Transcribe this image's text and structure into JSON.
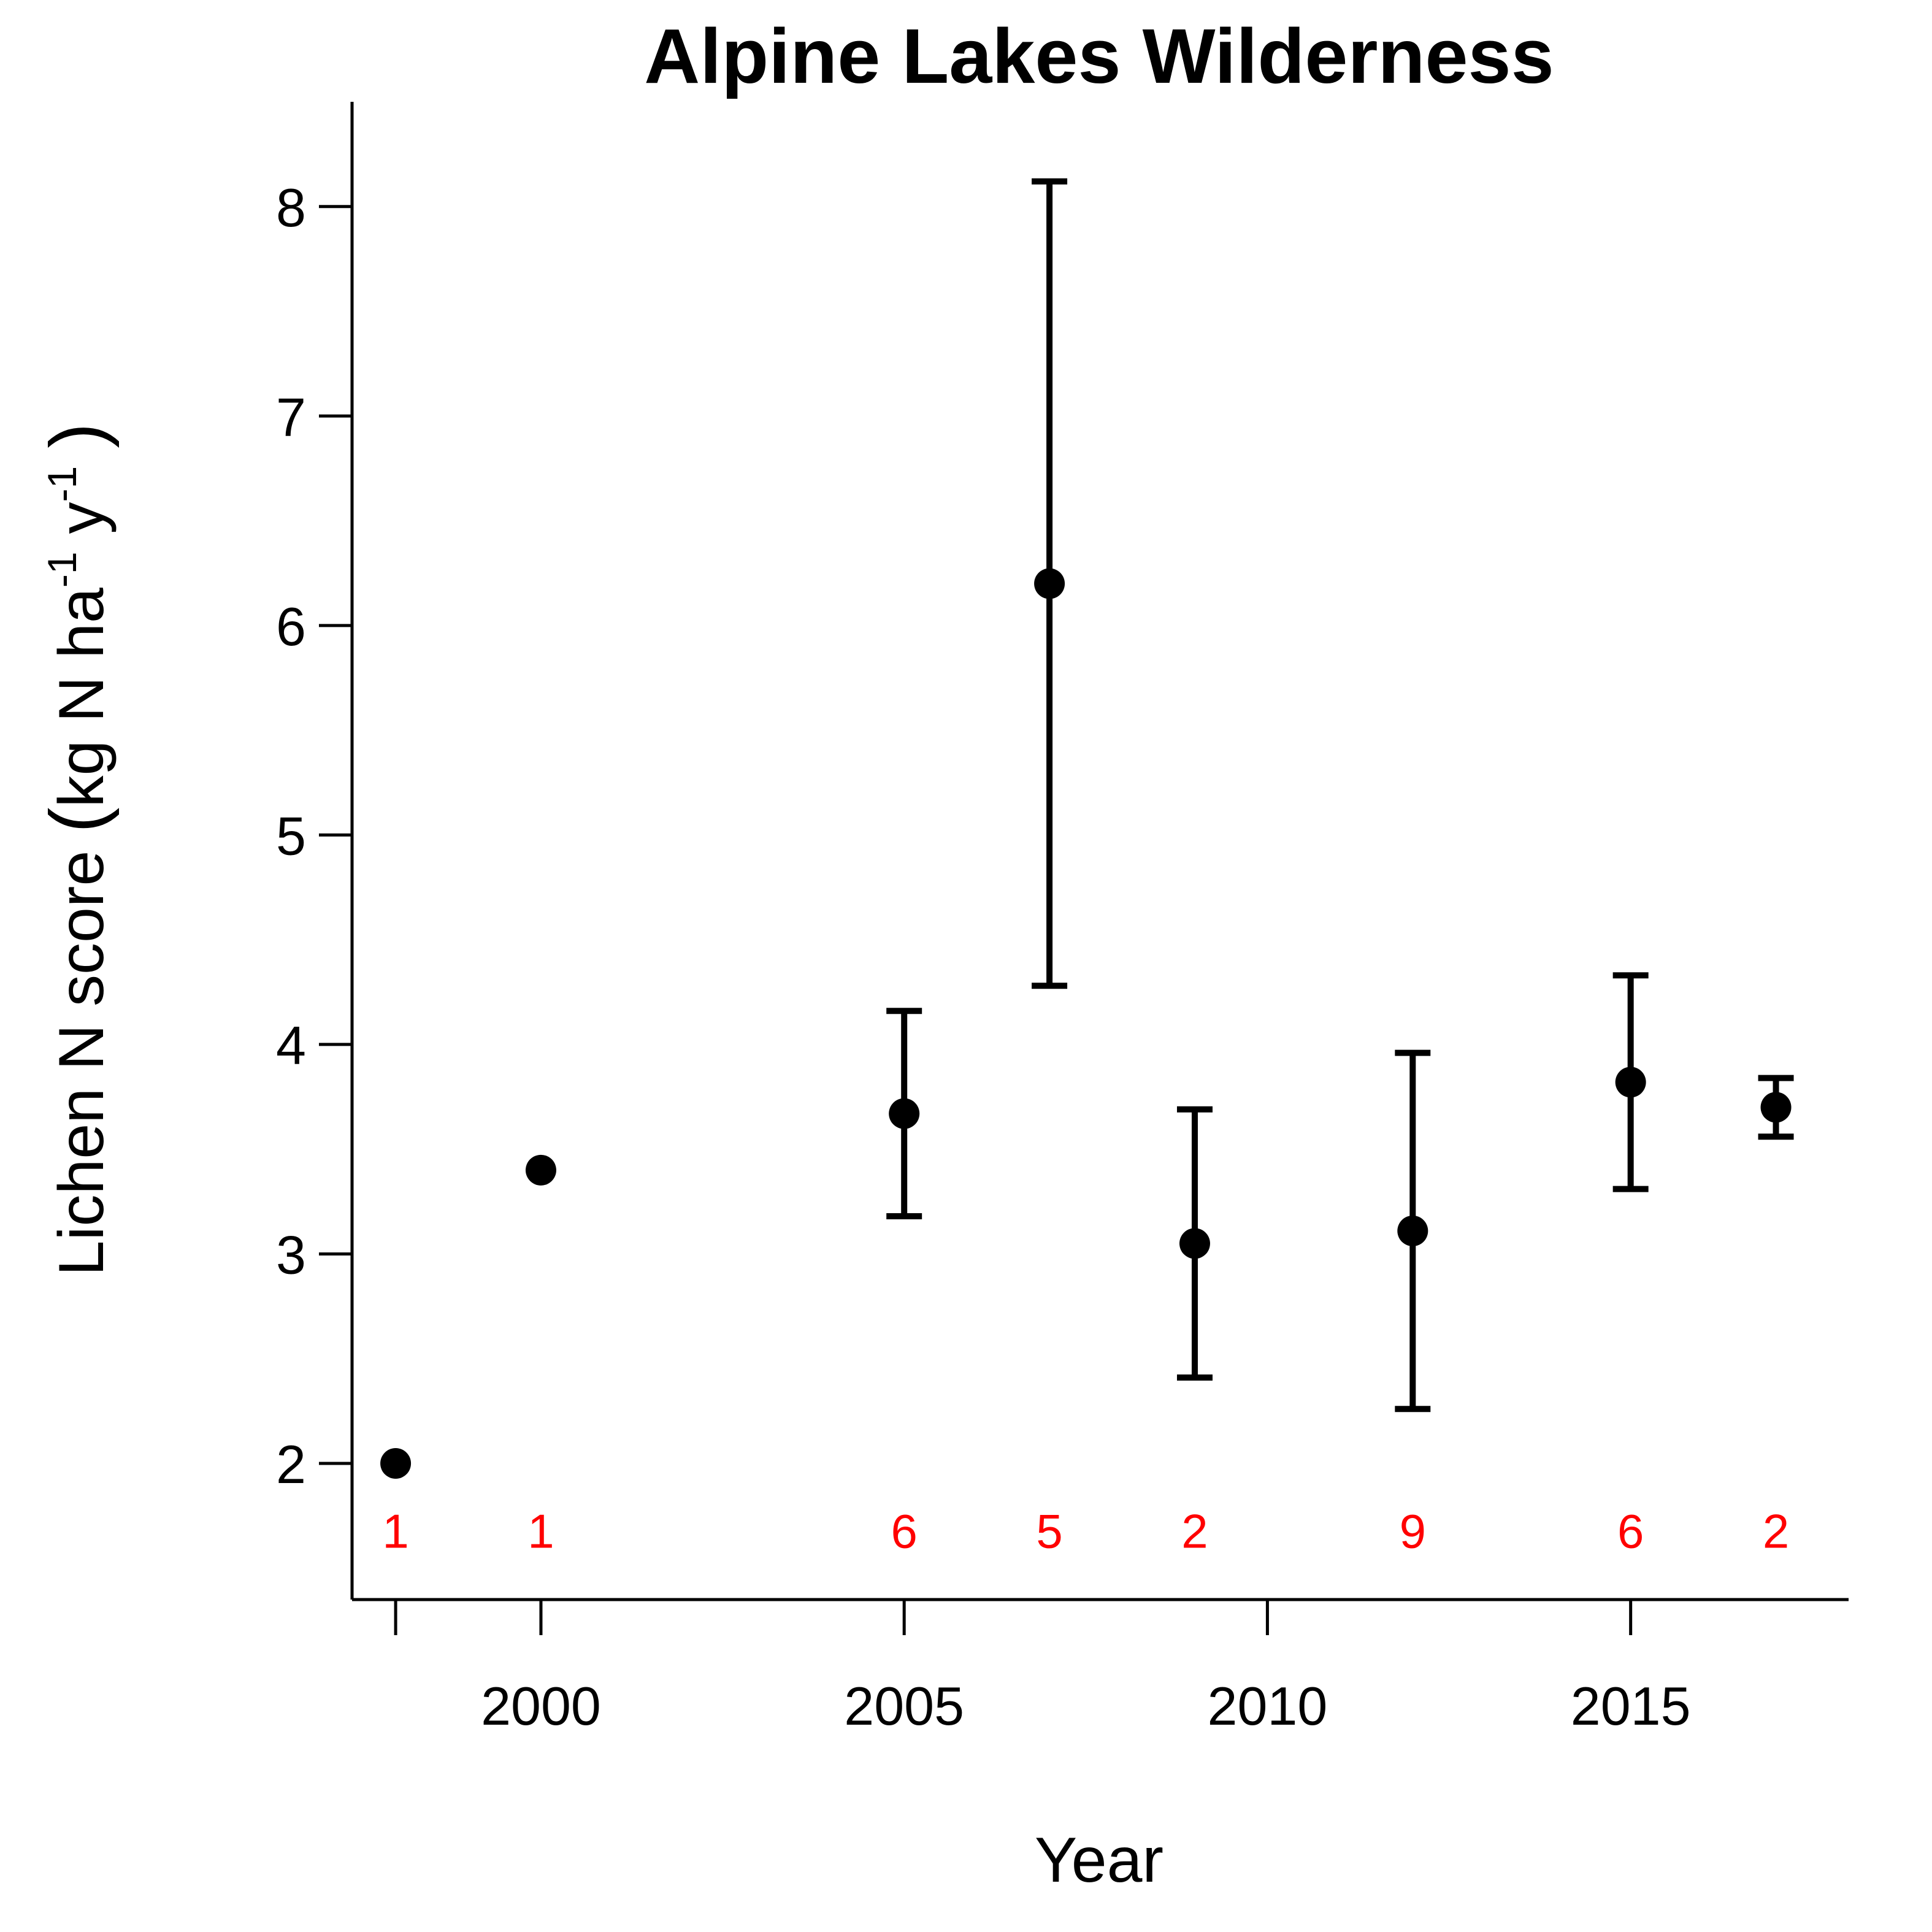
{
  "chart_data": {
    "type": "scatter",
    "title": "Alpine Lakes Wilderness",
    "xlabel": "Year",
    "ylabel": {
      "prefix": "Lichen N score",
      "unit_parts": [
        {
          "text": "kg N ha",
          "sup": "-1"
        },
        {
          "text": " y",
          "sup": "-1"
        }
      ]
    },
    "xlim": [
      1997.4,
      2018.0
    ],
    "ylim": [
      1.35,
      8.5
    ],
    "x_ticks": [
      {
        "value": 1998,
        "label": ""
      },
      {
        "value": 2000,
        "label": "2000"
      },
      {
        "value": 2005,
        "label": "2005"
      },
      {
        "value": 2010,
        "label": "2010"
      },
      {
        "value": 2015,
        "label": "2015"
      }
    ],
    "y_ticks": [
      {
        "value": 2,
        "label": "2"
      },
      {
        "value": 3,
        "label": "3"
      },
      {
        "value": 4,
        "label": "4"
      },
      {
        "value": 5,
        "label": "5"
      },
      {
        "value": 6,
        "label": "6"
      },
      {
        "value": 7,
        "label": "7"
      },
      {
        "value": 8,
        "label": "8"
      }
    ],
    "count_y": 1.68,
    "grid": false,
    "colors": {
      "points": "#000000",
      "counts": "#ff0000"
    },
    "points": [
      {
        "year": 1998,
        "mean": 2.0,
        "lower": null,
        "upper": null,
        "n": "1"
      },
      {
        "year": 2000,
        "mean": 3.4,
        "lower": null,
        "upper": null,
        "n": "1"
      },
      {
        "year": 2005,
        "mean": 3.67,
        "lower": 3.18,
        "upper": 4.16,
        "n": "6"
      },
      {
        "year": 2007,
        "mean": 6.2,
        "lower": 4.28,
        "upper": 8.12,
        "n": "5"
      },
      {
        "year": 2009,
        "mean": 3.05,
        "lower": 2.41,
        "upper": 3.69,
        "n": "2"
      },
      {
        "year": 2012,
        "mean": 3.11,
        "lower": 2.26,
        "upper": 3.96,
        "n": "9"
      },
      {
        "year": 2015,
        "mean": 3.82,
        "lower": 3.31,
        "upper": 4.33,
        "n": "6"
      },
      {
        "year": 2017,
        "mean": 3.7,
        "lower": 3.56,
        "upper": 3.84,
        "n": "2"
      }
    ]
  }
}
